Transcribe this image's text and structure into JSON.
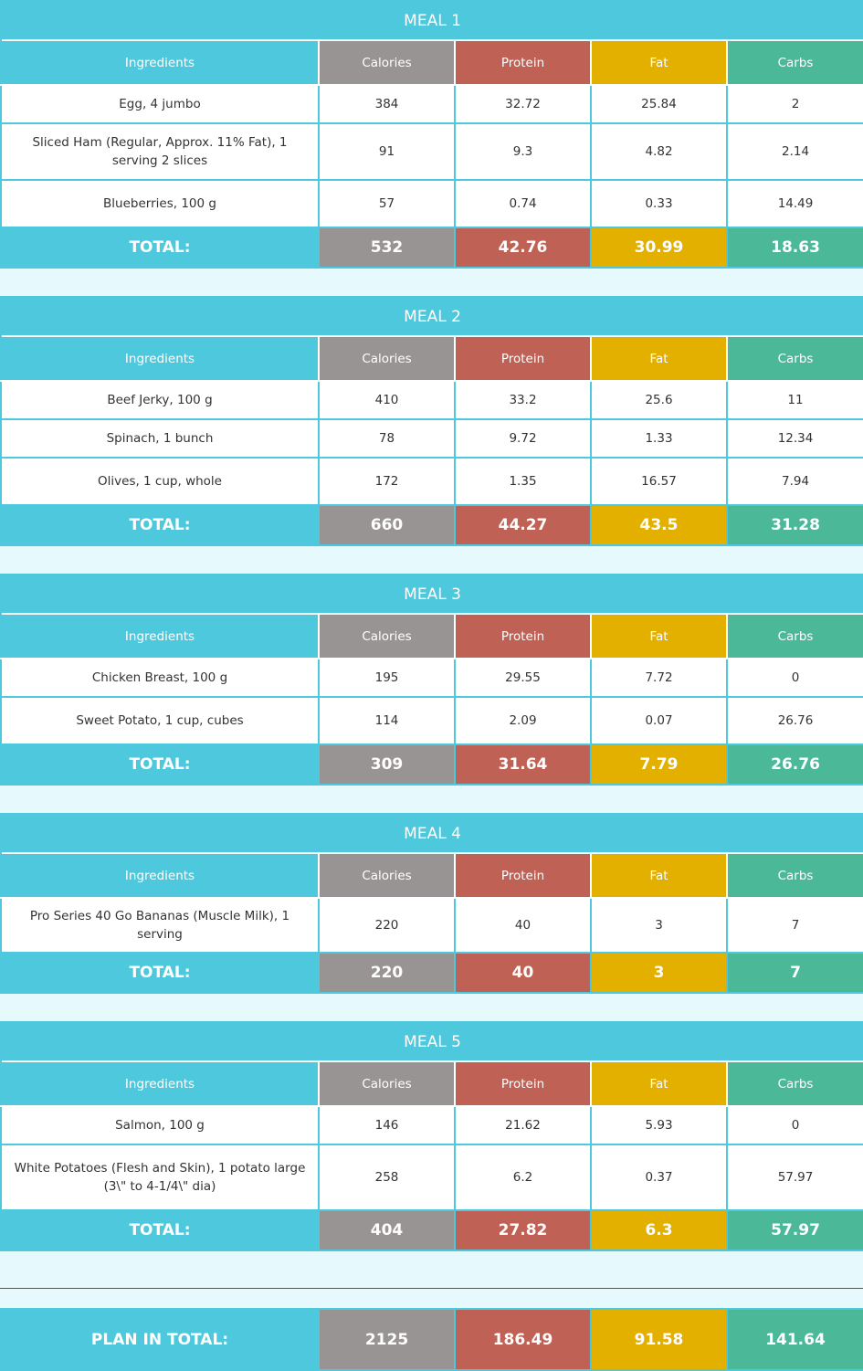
{
  "headers": {
    "ingredients": "Ingredients",
    "calories": "Calories",
    "protein": "Protein",
    "fat": "Fat",
    "carbs": "Carbs"
  },
  "total_label": "TOTAL:",
  "colors": {
    "header_teal": "#4ec8dd",
    "calories": "#989494",
    "protein": "#bf6154",
    "fat": "#e3b000",
    "carbs": "#4bb898",
    "background": "#e6f9fc"
  },
  "meals": [
    {
      "title": "MEAL 1",
      "items": [
        {
          "name": "Egg, 4 jumbo",
          "calories": "384",
          "protein": "32.72",
          "fat": "25.84",
          "carbs": "2"
        },
        {
          "name": "Sliced Ham (Regular, Approx. 11% Fat), 1 serving 2 slices",
          "calories": "91",
          "protein": "9.3",
          "fat": "4.82",
          "carbs": "2.14"
        },
        {
          "name": "Blueberries, 100 g",
          "calories": "57",
          "protein": "0.74",
          "fat": "0.33",
          "carbs": "14.49"
        }
      ],
      "total": {
        "calories": "532",
        "protein": "42.76",
        "fat": "30.99",
        "carbs": "18.63"
      }
    },
    {
      "title": "MEAL 2",
      "items": [
        {
          "name": "Beef Jerky, 100 g",
          "calories": "410",
          "protein": "33.2",
          "fat": "25.6",
          "carbs": "11"
        },
        {
          "name": "Spinach, 1 bunch",
          "calories": "78",
          "protein": "9.72",
          "fat": "1.33",
          "carbs": "12.34"
        },
        {
          "name": "Olives, 1 cup, whole",
          "calories": "172",
          "protein": "1.35",
          "fat": "16.57",
          "carbs": "7.94"
        }
      ],
      "total": {
        "calories": "660",
        "protein": "44.27",
        "fat": "43.5",
        "carbs": "31.28"
      }
    },
    {
      "title": "MEAL 3",
      "items": [
        {
          "name": "Chicken Breast, 100 g",
          "calories": "195",
          "protein": "29.55",
          "fat": "7.72",
          "carbs": "0"
        },
        {
          "name": "Sweet Potato, 1 cup, cubes",
          "calories": "114",
          "protein": "2.09",
          "fat": "0.07",
          "carbs": "26.76"
        }
      ],
      "total": {
        "calories": "309",
        "protein": "31.64",
        "fat": "7.79",
        "carbs": "26.76"
      }
    },
    {
      "title": "MEAL 4",
      "items": [
        {
          "name": "Pro Series 40 Go Bananas (Muscle Milk), 1 serving",
          "calories": "220",
          "protein": "40",
          "fat": "3",
          "carbs": "7"
        }
      ],
      "total": {
        "calories": "220",
        "protein": "40",
        "fat": "3",
        "carbs": "7"
      }
    },
    {
      "title": "MEAL 5",
      "items": [
        {
          "name": "Salmon, 100 g",
          "calories": "146",
          "protein": "21.62",
          "fat": "5.93",
          "carbs": "0"
        },
        {
          "name": "White Potatoes (Flesh and Skin), 1 potato large (3\\\" to 4-1/4\\\" dia)",
          "calories": "258",
          "protein": "6.2",
          "fat": "0.37",
          "carbs": "57.97"
        }
      ],
      "total": {
        "calories": "404",
        "protein": "27.82",
        "fat": "6.3",
        "carbs": "57.97"
      }
    }
  ],
  "plan_total": {
    "label": "PLAN IN TOTAL:",
    "calories": "2125",
    "protein": "186.49",
    "fat": "91.58",
    "carbs": "141.64"
  }
}
